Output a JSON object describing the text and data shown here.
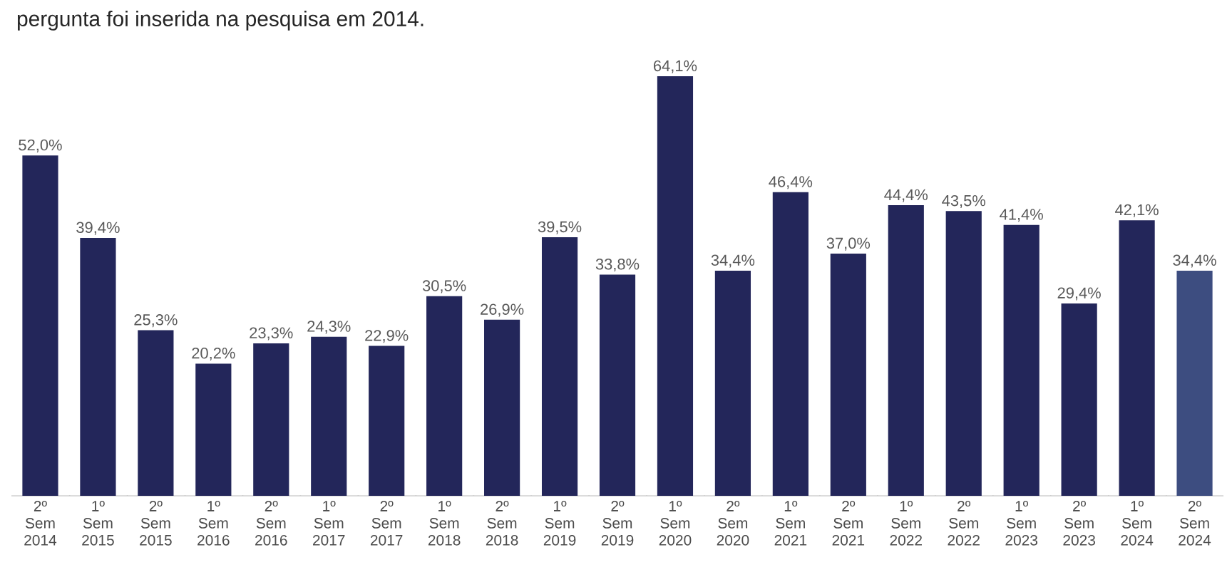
{
  "chart_data": {
    "type": "bar",
    "title": "pergunta foi inserida na pesquisa em 2014.",
    "categories": [
      "2º Sem 2014",
      "1º Sem 2015",
      "2º Sem 2015",
      "1º Sem 2016",
      "2º Sem 2016",
      "1º Sem 2017",
      "2º Sem 2017",
      "1º Sem 2018",
      "2º Sem 2018",
      "1º Sem 2019",
      "2º Sem 2019",
      "1º Sem 2020",
      "2º Sem 2020",
      "1º Sem 2021",
      "2º Sem 2021",
      "1º Sem 2022",
      "2º Sem 2022",
      "1º Sem 2023",
      "2º Sem 2023",
      "1º Sem 2024",
      "2º Sem 2024"
    ],
    "values": [
      52.0,
      39.4,
      25.3,
      20.2,
      23.3,
      24.3,
      22.9,
      30.5,
      26.9,
      39.5,
      33.8,
      64.1,
      34.4,
      46.4,
      37.0,
      44.4,
      43.5,
      41.4,
      29.4,
      42.1,
      34.4
    ],
    "value_labels": [
      "52,0%",
      "39,4%",
      "25,3%",
      "20,2%",
      "23,3%",
      "24,3%",
      "22,9%",
      "30,5%",
      "26,9%",
      "39,5%",
      "33,8%",
      "64,1%",
      "34,4%",
      "46,4%",
      "37,0%",
      "44,4%",
      "43,5%",
      "41,4%",
      "29,4%",
      "42,1%",
      "34,4%"
    ],
    "colors": [
      "#23265a",
      "#23265a",
      "#23265a",
      "#23265a",
      "#23265a",
      "#23265a",
      "#23265a",
      "#23265a",
      "#23265a",
      "#23265a",
      "#23265a",
      "#23265a",
      "#23265a",
      "#23265a",
      "#23265a",
      "#23265a",
      "#23265a",
      "#23265a",
      "#23265a",
      "#23265a",
      "#3d4d80"
    ],
    "tick_labels": "x",
    "grid": false
  }
}
